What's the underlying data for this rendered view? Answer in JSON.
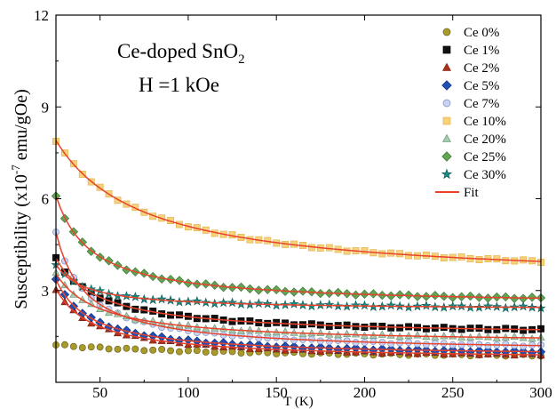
{
  "chart_data": {
    "type": "scatter",
    "annotation": {
      "line1_prefix": "Ce-doped SnO",
      "line1_sub": "2",
      "line2": "H =1 kOe"
    },
    "xlabel": "T (K)",
    "ylabel_prefix": "Susceptibility (x10",
    "ylabel_sup": "-7",
    "ylabel_suffix": " emu/gOe)",
    "xlim": [
      25,
      300
    ],
    "ylim": [
      0,
      12
    ],
    "xticks": [
      50,
      100,
      150,
      200,
      250,
      300
    ],
    "yticks": [
      3,
      6,
      9,
      12
    ],
    "grid": false,
    "legend_position": "top-right",
    "fit_label": "Fit",
    "fit_color": "#e8422c",
    "series": [
      {
        "name": "Ce 0%",
        "marker": "circle",
        "color": "#a99a2c",
        "stroke": "#6e6418",
        "y25": 1.22,
        "y300": 0.88,
        "shape": 0.01
      },
      {
        "name": "Ce 1%",
        "marker": "square",
        "color": "#111111",
        "stroke": "#000000",
        "y25": 4.05,
        "y300": 1.72,
        "shape": 0.04
      },
      {
        "name": "Ce 2%",
        "marker": "triangle",
        "color": "#b0301c",
        "stroke": "#7a1f10",
        "y25": 3.05,
        "y300": 0.9,
        "shape": 0.045
      },
      {
        "name": "Ce 5%",
        "marker": "diamond",
        "color": "#1f4fb4",
        "stroke": "#12307a",
        "y25": 3.35,
        "y300": 1.0,
        "shape": 0.05
      },
      {
        "name": "Ce 7%",
        "marker": "circle",
        "color": "#c8d4f2",
        "stroke": "#7e8fc4",
        "y25": 4.9,
        "y300": 1.2,
        "shape": 0.06
      },
      {
        "name": "Ce 10%",
        "marker": "square",
        "color": "#f7d27a",
        "stroke": "#e2b44a",
        "y25": 7.9,
        "y300": 3.95,
        "shape": 0.02
      },
      {
        "name": "Ce 20%",
        "marker": "triangle",
        "color": "#a7cbb0",
        "stroke": "#6e9a78",
        "y25": 3.55,
        "y300": 1.45,
        "shape": 0.04
      },
      {
        "name": "Ce 25%",
        "marker": "diamond",
        "color": "#62a455",
        "stroke": "#3b7a32",
        "y25": 6.1,
        "y300": 2.75,
        "shape": 0.05
      },
      {
        "name": "Ce 30%",
        "marker": "star",
        "color": "#1d8a84",
        "stroke": "#0f5f5a",
        "y25": 3.85,
        "y300": 2.45,
        "shape": 0.06
      }
    ]
  }
}
